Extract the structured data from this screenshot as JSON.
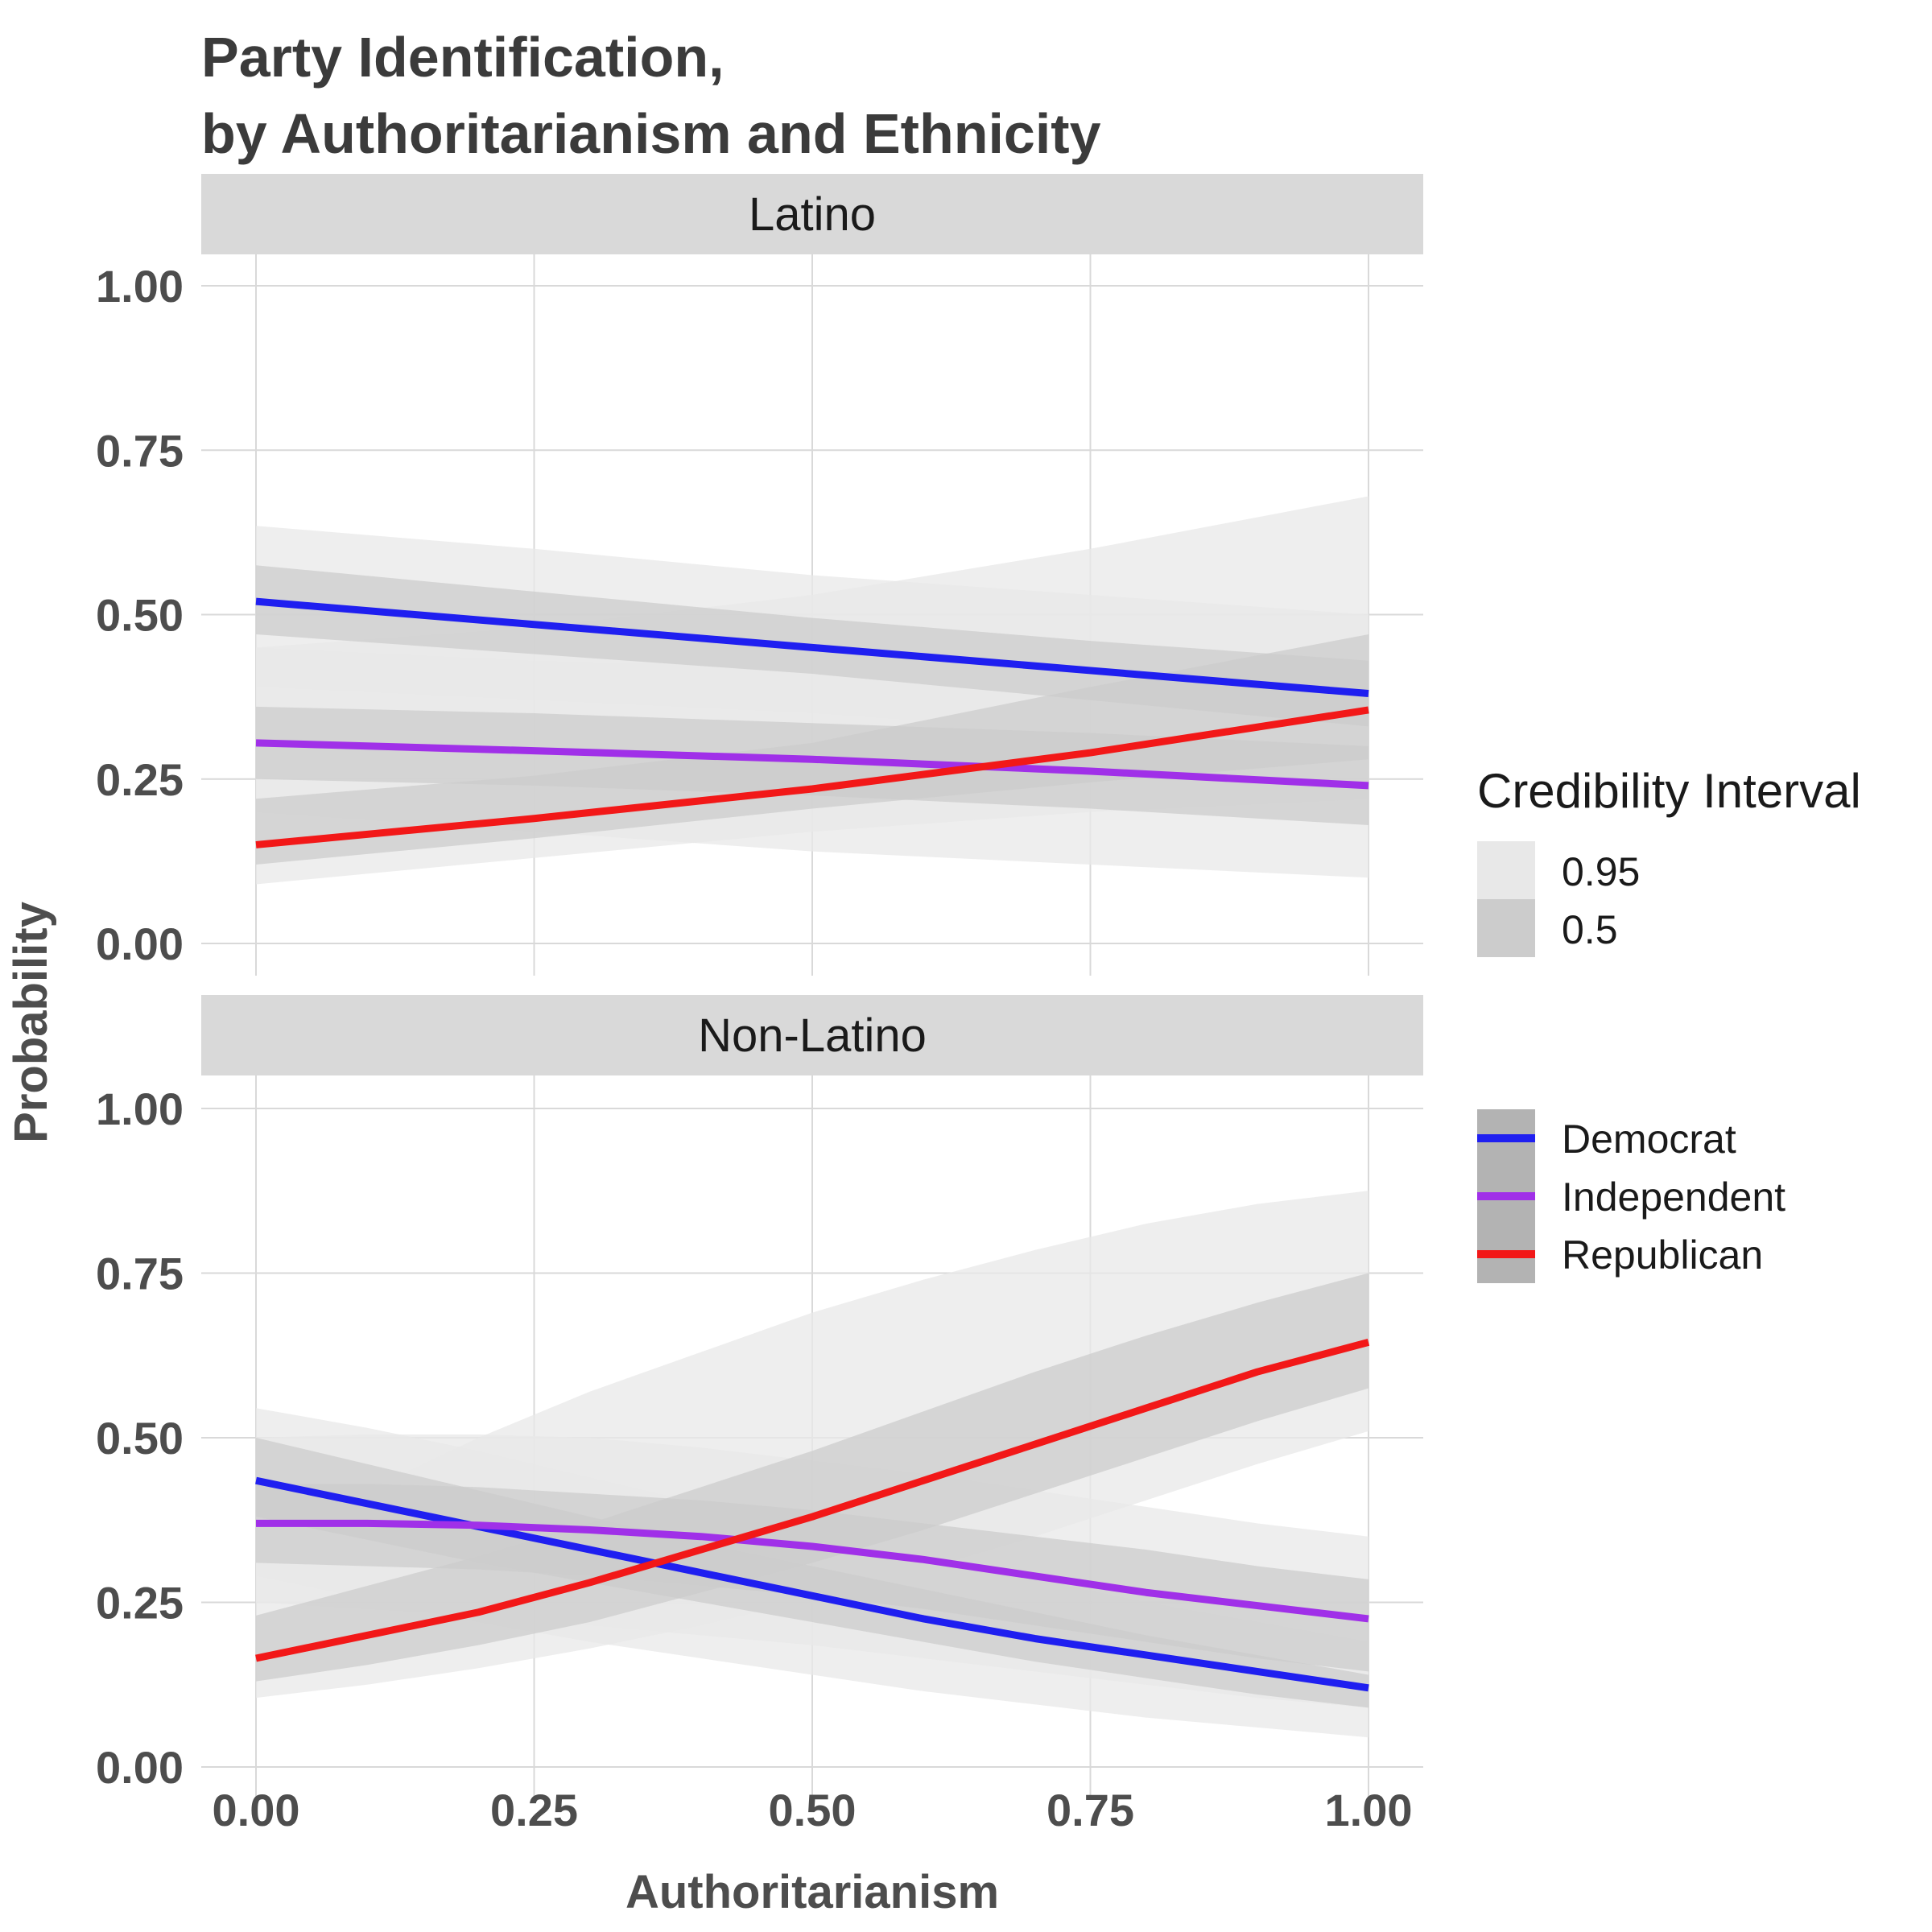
{
  "title_line1": "Party Identification,",
  "title_line2": "by Authoritarianism and Ethnicity",
  "legend": {
    "ci_title": "Credibility Interval",
    "ci_levels": [
      {
        "label": "0.95",
        "color": "#e8e8e8"
      },
      {
        "label": "0.5",
        "color": "#cccccc"
      }
    ],
    "parties": [
      {
        "label": "Democrat",
        "color": "#1f1ff0"
      },
      {
        "label": "Independent",
        "color": "#a030e8"
      },
      {
        "label": "Republican",
        "color": "#f21818"
      }
    ]
  },
  "chart_data": [
    {
      "type": "line",
      "panel": "Latino",
      "xlabel": "Authoritarianism",
      "ylabel": "Probability",
      "xlim": [
        0,
        1
      ],
      "ylim": [
        0,
        1
      ],
      "x_ticks": [
        "0.00",
        "0.25",
        "0.50",
        "0.75",
        "1.00"
      ],
      "y_ticks": [
        "0.00",
        "0.25",
        "0.50",
        "0.75",
        "1.00"
      ],
      "x": [
        0,
        0.25,
        0.5,
        0.75,
        1
      ],
      "series": [
        {
          "name": "Democrat",
          "color": "#1f1ff0",
          "values": [
            0.52,
            0.485,
            0.45,
            0.415,
            0.38
          ],
          "ci50_lower": [
            0.47,
            0.44,
            0.41,
            0.37,
            0.33
          ],
          "ci50_upper": [
            0.575,
            0.535,
            0.495,
            0.46,
            0.43
          ],
          "ci95_lower": [
            0.39,
            0.37,
            0.35,
            0.32,
            0.27
          ],
          "ci95_upper": [
            0.635,
            0.6,
            0.56,
            0.53,
            0.5
          ]
        },
        {
          "name": "Independent",
          "color": "#a030e8",
          "values": [
            0.305,
            0.293,
            0.28,
            0.262,
            0.24
          ],
          "ci50_lower": [
            0.25,
            0.24,
            0.225,
            0.205,
            0.18
          ],
          "ci50_upper": [
            0.36,
            0.35,
            0.335,
            0.32,
            0.3
          ],
          "ci95_lower": [
            0.2,
            0.17,
            0.14,
            0.12,
            0.1
          ],
          "ci95_upper": [
            0.45,
            0.43,
            0.42,
            0.4,
            0.39
          ]
        },
        {
          "name": "Republican",
          "color": "#f21818",
          "values": [
            0.15,
            0.19,
            0.235,
            0.29,
            0.355
          ],
          "ci50_lower": [
            0.12,
            0.16,
            0.205,
            0.245,
            0.28
          ],
          "ci50_upper": [
            0.22,
            0.255,
            0.305,
            0.39,
            0.47
          ],
          "ci95_lower": [
            0.09,
            0.13,
            0.17,
            0.2,
            0.22
          ],
          "ci95_upper": [
            0.45,
            0.48,
            0.53,
            0.6,
            0.68
          ]
        }
      ]
    },
    {
      "type": "line",
      "panel": "Non-Latino",
      "xlabel": "Authoritarianism",
      "ylabel": "Probability",
      "xlim": [
        0,
        1
      ],
      "ylim": [
        0,
        1
      ],
      "x_ticks": [
        "0.00",
        "0.25",
        "0.50",
        "0.75",
        "1.00"
      ],
      "y_ticks": [
        "0.00",
        "0.25",
        "0.50",
        "0.75",
        "1.00"
      ],
      "x": [
        0,
        0.1,
        0.2,
        0.3,
        0.4,
        0.5,
        0.6,
        0.7,
        0.8,
        0.9,
        1
      ],
      "series": [
        {
          "name": "Democrat",
          "color": "#1f1ff0",
          "values": [
            0.435,
            0.4,
            0.365,
            0.33,
            0.295,
            0.26,
            0.225,
            0.195,
            0.17,
            0.145,
            0.12
          ],
          "ci50_lower": [
            0.38,
            0.345,
            0.31,
            0.28,
            0.25,
            0.22,
            0.19,
            0.16,
            0.135,
            0.11,
            0.09
          ],
          "ci50_upper": [
            0.5,
            0.46,
            0.42,
            0.38,
            0.34,
            0.305,
            0.27,
            0.235,
            0.2,
            0.17,
            0.14
          ],
          "ci95_lower": [
            0.29,
            0.255,
            0.22,
            0.19,
            0.165,
            0.14,
            0.115,
            0.095,
            0.075,
            0.06,
            0.045
          ],
          "ci95_upper": [
            0.545,
            0.515,
            0.48,
            0.44,
            0.4,
            0.36,
            0.32,
            0.285,
            0.25,
            0.22,
            0.19
          ]
        },
        {
          "name": "Independent",
          "color": "#a030e8",
          "values": [
            0.37,
            0.37,
            0.367,
            0.36,
            0.35,
            0.335,
            0.315,
            0.29,
            0.265,
            0.245,
            0.225
          ],
          "ci50_lower": [
            0.31,
            0.305,
            0.3,
            0.29,
            0.275,
            0.26,
            0.24,
            0.215,
            0.19,
            0.165,
            0.145
          ],
          "ci50_upper": [
            0.43,
            0.43,
            0.425,
            0.415,
            0.405,
            0.39,
            0.37,
            0.35,
            0.33,
            0.305,
            0.285
          ],
          "ci95_lower": [
            0.25,
            0.24,
            0.23,
            0.215,
            0.2,
            0.185,
            0.165,
            0.145,
            0.125,
            0.105,
            0.09
          ],
          "ci95_upper": [
            0.5,
            0.505,
            0.505,
            0.5,
            0.485,
            0.465,
            0.445,
            0.42,
            0.395,
            0.37,
            0.35
          ]
        },
        {
          "name": "Republican",
          "color": "#f21818",
          "values": [
            0.165,
            0.2,
            0.235,
            0.28,
            0.33,
            0.38,
            0.435,
            0.49,
            0.545,
            0.6,
            0.645
          ],
          "ci50_lower": [
            0.13,
            0.155,
            0.185,
            0.22,
            0.265,
            0.31,
            0.36,
            0.415,
            0.47,
            0.525,
            0.575
          ],
          "ci50_upper": [
            0.23,
            0.275,
            0.32,
            0.37,
            0.425,
            0.48,
            0.54,
            0.6,
            0.655,
            0.705,
            0.75
          ],
          "ci95_lower": [
            0.105,
            0.125,
            0.15,
            0.18,
            0.215,
            0.255,
            0.3,
            0.35,
            0.405,
            0.46,
            0.51
          ],
          "ci95_upper": [
            0.34,
            0.42,
            0.5,
            0.57,
            0.63,
            0.69,
            0.74,
            0.785,
            0.825,
            0.855,
            0.875
          ]
        }
      ]
    }
  ]
}
